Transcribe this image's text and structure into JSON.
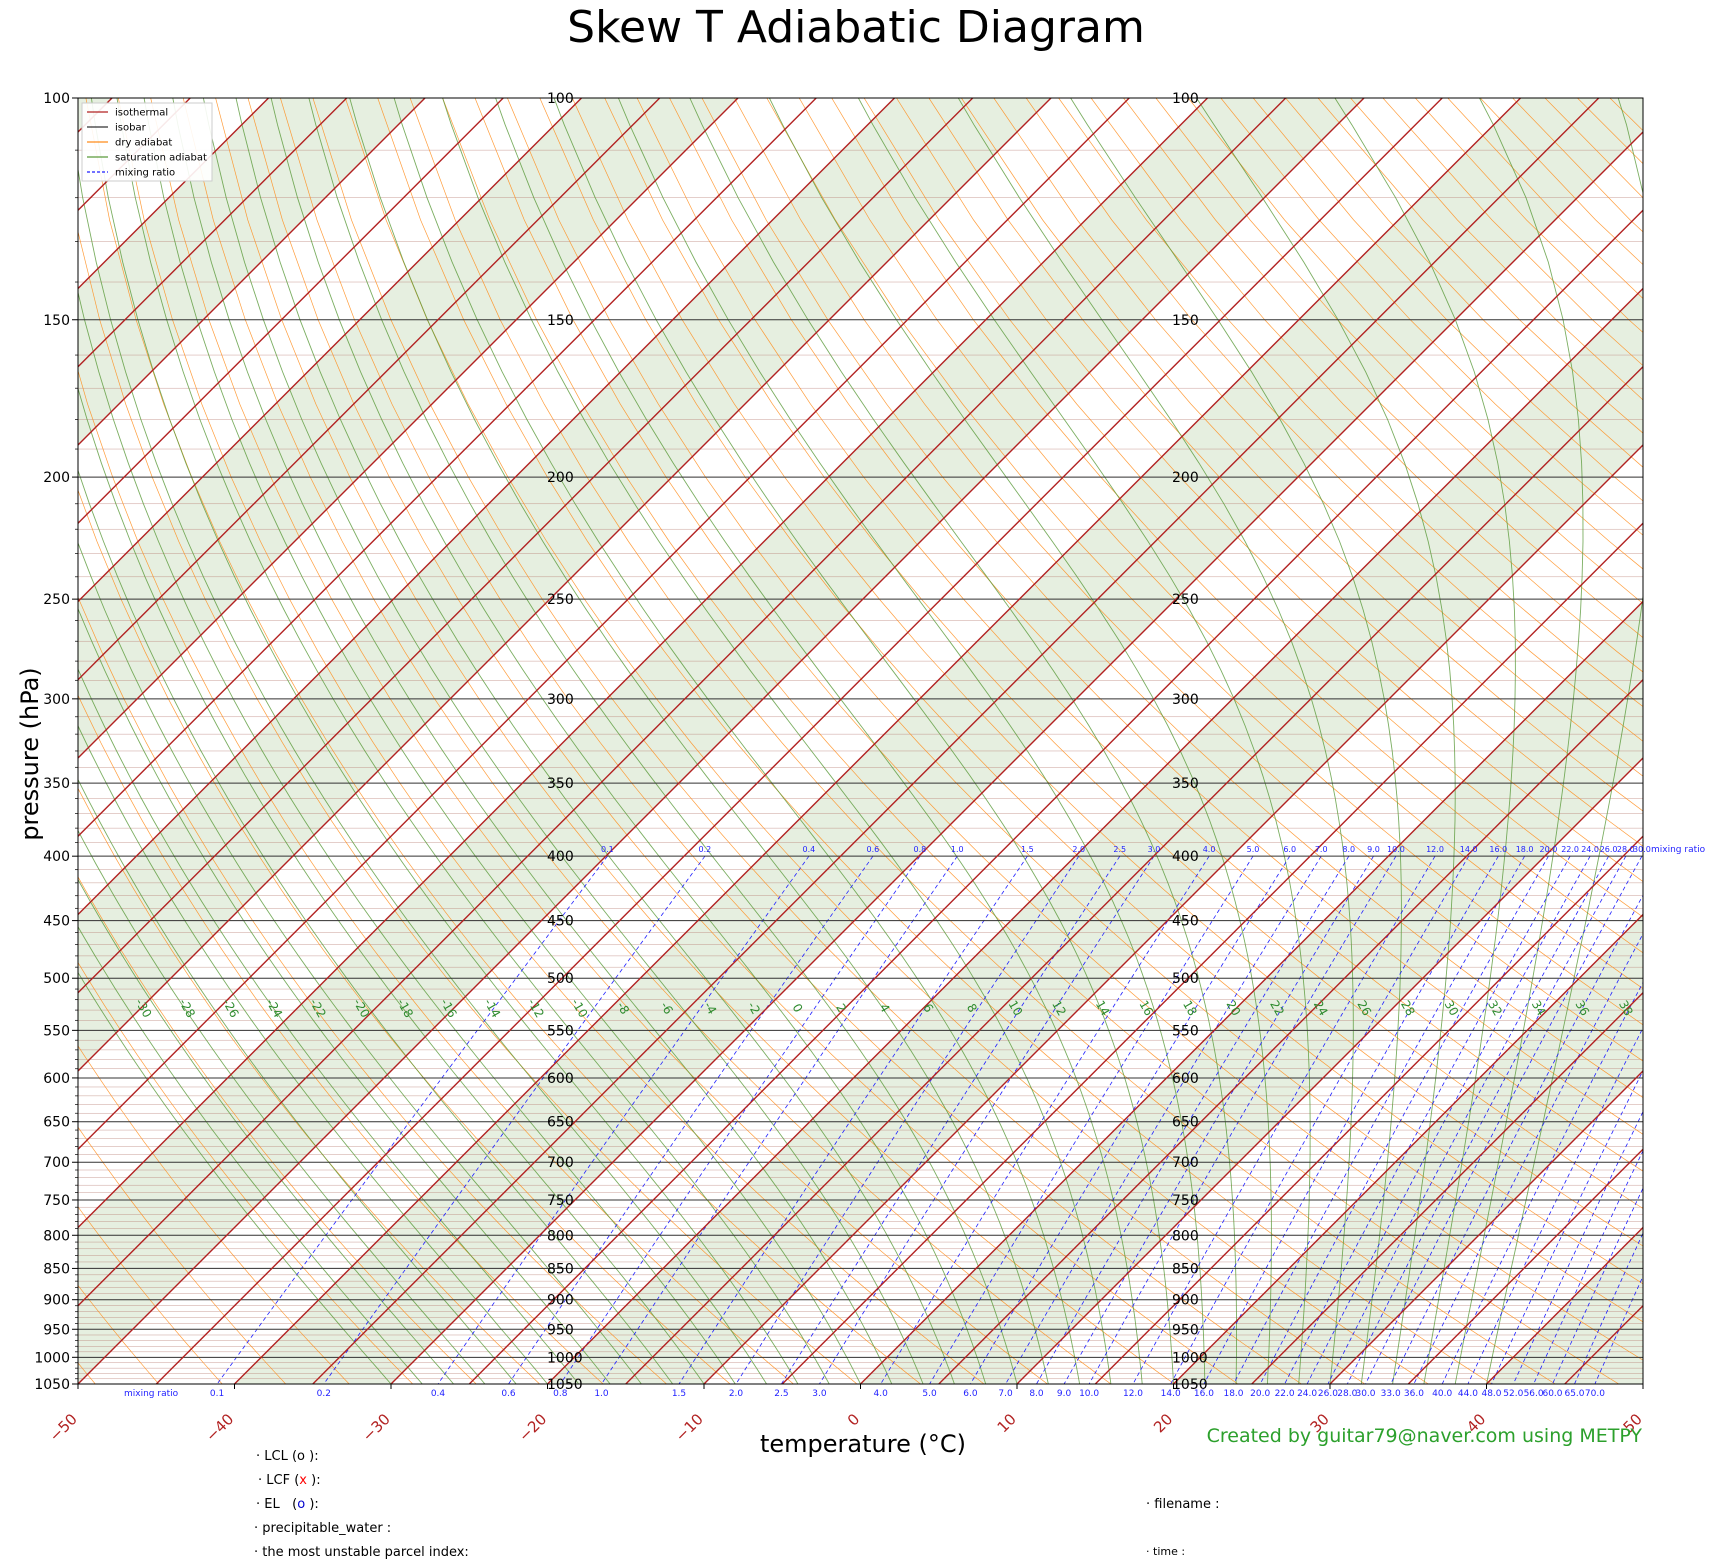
{
  "chart_data": {
    "type": "line",
    "title": "Skew T Adiabatic Diagram",
    "xlabel": "temperature (°C)",
    "ylabel": "pressure (hPa)",
    "xlim": [
      -50,
      50
    ],
    "ylim": [
      1050,
      100
    ],
    "x_ticks": [
      -50,
      -40,
      -30,
      -20,
      -10,
      0,
      10,
      20,
      30,
      40,
      50
    ],
    "y_ticks": [
      100,
      150,
      200,
      250,
      300,
      350,
      400,
      450,
      500,
      550,
      600,
      650,
      700,
      750,
      800,
      850,
      900,
      950,
      1000,
      1050
    ],
    "y_scale": "log",
    "skew_degrees": 45,
    "legend_position": "top-left",
    "legend": [
      "isothermal",
      "isobar",
      "dry adiabat",
      "saturation adiabat",
      "mixing ratio"
    ],
    "mixing_ratio_label": "mixing ratio",
    "mixing_ratios": [
      "0.1",
      "0.2",
      "0.4",
      "0.6",
      "0.8",
      "1.0",
      "1.5",
      "2.0",
      "2.5",
      "3.0",
      "4.0",
      "5.0",
      "6.0",
      "7.0",
      "8.0",
      "9.0",
      "10.0",
      "12.0",
      "14.0",
      "16.0",
      "18.0",
      "20.0",
      "22.0",
      "24.0",
      "26.0",
      "28.0",
      "30.0",
      "33.0",
      "36.0",
      "40.0",
      "44.0",
      "48.0",
      "52.0",
      "56.0",
      "60.0",
      "65.0",
      "70.0"
    ],
    "isotherm_temperatures": [
      -150,
      -145,
      -140,
      -135,
      -130,
      -125,
      -120,
      -115,
      -110,
      -105,
      -100,
      -95,
      -90,
      -85,
      -80,
      -75,
      -70,
      -65,
      -60,
      -55,
      -50,
      -45,
      -40,
      -35,
      -30,
      -25,
      -20,
      -15,
      -10,
      -5,
      0,
      5,
      10,
      15,
      20,
      25,
      30,
      35,
      40,
      45,
      50
    ],
    "saturation_adiabat_labels": [
      -30,
      -28,
      -26,
      -24,
      -22,
      -20,
      -18,
      -16,
      -14,
      -12,
      -10,
      -8,
      -6,
      -4,
      -2,
      0,
      2,
      4,
      6,
      8,
      10,
      12,
      14,
      16,
      18,
      20,
      22,
      24,
      26,
      28,
      30,
      32,
      34,
      36,
      38
    ],
    "colors": {
      "isothermal": "#b22222",
      "isobar": "#333333",
      "dry_adiabat": "#ff8c1a",
      "saturation_adiabat": "#5a9a3a",
      "mixing_ratio": "#1f1fff",
      "shade": "#dde9d6",
      "credit": "#2ca02c",
      "lcf_marker": "#ff0000",
      "el_marker": "#0000cc"
    }
  },
  "credit": "Created by guitar79@naver.com using METPY",
  "info": {
    "lcl": "LCL (o ):",
    "lcf_prefix": "LCF (",
    "lcf_marker": "x",
    "lcf_suffix": " ):",
    "el_prefix": "EL   (",
    "el_marker": "o",
    "el_suffix": " ):",
    "precipitable_water": "precipitable_water :",
    "most_unstable": "the most unstable parcel index:",
    "filename": "filename :",
    "time": "time :",
    "bullet": "·"
  }
}
